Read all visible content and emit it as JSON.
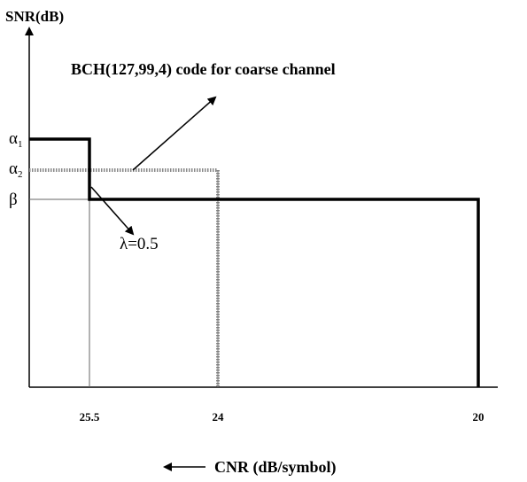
{
  "y_axis": {
    "label": "SNR(dB)",
    "levels": [
      {
        "symbol": "α",
        "sub": "1"
      },
      {
        "symbol": "α",
        "sub": "2"
      },
      {
        "symbol": "β"
      }
    ]
  },
  "x_axis": {
    "label": "CNR (dB/symbol)",
    "ticks": [
      "25.5",
      "24",
      "20"
    ]
  },
  "annotations": [
    "BCH(127,99,4) code for coarse channel",
    "λ=0.5"
  ]
}
